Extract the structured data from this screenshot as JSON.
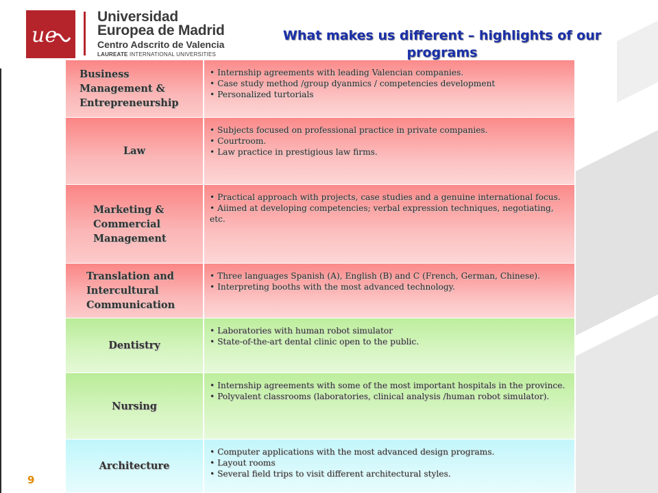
{
  "logo": {
    "line1": "Universidad",
    "line2": "Europea de Madrid",
    "line3": "Centro Adscrito de Valencia",
    "line4_bold": "LAUREATE",
    "line4_rest": " INTERNATIONAL UNIVERSITIES",
    "mark_text": "ue"
  },
  "title": "What makes us different – highlights of our programs",
  "page_number": "9",
  "colors": {
    "title": "#1a2fa8",
    "brand_red": "#b5242b",
    "page_number": "#e08a00"
  },
  "programs": [
    {
      "name": "Business Management & Entrepreneurship",
      "tone": "red",
      "bullets": [
        "Internship agreements with leading Valencian companies.",
        "Case study method /group dyanmics / competencies development",
        "Personalized turtorials"
      ]
    },
    {
      "name": "Law",
      "tone": "red",
      "bullets": [
        "Subjects focused on professional practice in private companies.",
        "Courtroom.",
        "Law practice in prestigious law firms."
      ]
    },
    {
      "name": "Marketing & Commercial Management",
      "tone": "red",
      "bullets": [
        "Practical approach with projects, case studies and a genuine international focus.",
        "Aiimed at developing competencies; verbal expression techniques, negotiating, etc."
      ]
    },
    {
      "name": "Translation and Intercultural Communication",
      "tone": "red",
      "bullets": [
        "Three languages Spanish (A), English (B) and C (French, German, Chinese).",
        "Interpreting booths with the most advanced technology."
      ]
    },
    {
      "name": "Dentistry",
      "tone": "green",
      "bullets": [
        "Laboratories with human robot simulator",
        "State-of-the-art dental clinic open to the public."
      ]
    },
    {
      "name": "Nursing",
      "tone": "green",
      "bullets": [
        "Internship agreements with some of the most important hospitals in the province.",
        "Polyvalent classrooms (laboratories, clinical analysis /human robot simulator)."
      ]
    },
    {
      "name": "Architecture",
      "tone": "cyan",
      "bullets": [
        "Computer applications with the most advanced design programs.",
        "Layout rooms",
        "Several field trips to visit different architectural styles."
      ]
    }
  ]
}
